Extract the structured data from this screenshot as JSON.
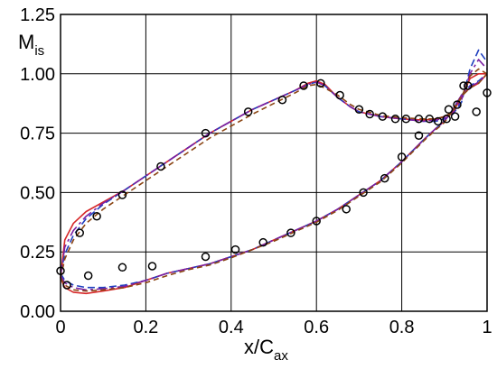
{
  "chart_data": {
    "type": "line",
    "title": "",
    "xlabel": {
      "main": "x/C",
      "sub": "ax"
    },
    "ylabel": {
      "main": "M",
      "sub": "is"
    },
    "xlim": [
      0,
      1
    ],
    "ylim": [
      0,
      1.25
    ],
    "grid": true,
    "legend": "none",
    "x_ticks": [
      {
        "value": 0,
        "label": "0"
      },
      {
        "value": 0.2,
        "label": "0.2"
      },
      {
        "value": 0.4,
        "label": "0.4"
      },
      {
        "value": 0.6,
        "label": "0.6"
      },
      {
        "value": 0.8,
        "label": "0.8"
      },
      {
        "value": 1.0,
        "label": "1"
      }
    ],
    "y_ticks": [
      {
        "value": 0,
        "label": "0.00"
      },
      {
        "value": 0.25,
        "label": "0.25"
      },
      {
        "value": 0.5,
        "label": "0.50"
      },
      {
        "value": 0.75,
        "label": "0.75"
      },
      {
        "value": 1.0,
        "label": "1.00"
      },
      {
        "value": 1.25,
        "label": "1.25"
      }
    ],
    "series": [
      {
        "color": "#d62728",
        "dash": "solid",
        "suction": [
          [
            0,
            0.14
          ],
          [
            0.01,
            0.3
          ],
          [
            0.03,
            0.37
          ],
          [
            0.06,
            0.42
          ],
          [
            0.1,
            0.46
          ],
          [
            0.15,
            0.51
          ],
          [
            0.2,
            0.57
          ],
          [
            0.25,
            0.63
          ],
          [
            0.3,
            0.69
          ],
          [
            0.35,
            0.75
          ],
          [
            0.4,
            0.8
          ],
          [
            0.45,
            0.85
          ],
          [
            0.5,
            0.89
          ],
          [
            0.55,
            0.93
          ],
          [
            0.58,
            0.96
          ],
          [
            0.6,
            0.97
          ],
          [
            0.62,
            0.955
          ],
          [
            0.65,
            0.9
          ],
          [
            0.68,
            0.86
          ],
          [
            0.7,
            0.84
          ],
          [
            0.75,
            0.82
          ],
          [
            0.8,
            0.81
          ],
          [
            0.85,
            0.805
          ],
          [
            0.88,
            0.81
          ],
          [
            0.9,
            0.82
          ],
          [
            0.92,
            0.84
          ],
          [
            0.94,
            0.9
          ],
          [
            0.96,
            0.98
          ],
          [
            0.98,
            1.0
          ],
          [
            1.0,
            1.0
          ]
        ],
        "pressure": [
          [
            0,
            0.14
          ],
          [
            0.01,
            0.1
          ],
          [
            0.03,
            0.08
          ],
          [
            0.06,
            0.075
          ],
          [
            0.1,
            0.085
          ],
          [
            0.15,
            0.1
          ],
          [
            0.2,
            0.13
          ],
          [
            0.25,
            0.16
          ],
          [
            0.3,
            0.18
          ],
          [
            0.35,
            0.2
          ],
          [
            0.4,
            0.23
          ],
          [
            0.45,
            0.26
          ],
          [
            0.5,
            0.3
          ],
          [
            0.55,
            0.34
          ],
          [
            0.6,
            0.38
          ],
          [
            0.65,
            0.43
          ],
          [
            0.7,
            0.49
          ],
          [
            0.75,
            0.55
          ],
          [
            0.8,
            0.63
          ],
          [
            0.85,
            0.72
          ],
          [
            0.88,
            0.77
          ],
          [
            0.9,
            0.8
          ],
          [
            0.92,
            0.85
          ],
          [
            0.94,
            0.91
          ],
          [
            0.96,
            0.94
          ],
          [
            0.98,
            0.96
          ],
          [
            1.0,
            1.0
          ]
        ]
      },
      {
        "color": "#1f3fbf",
        "dash": "8,4",
        "suction": [
          [
            0,
            0.16
          ],
          [
            0.01,
            0.24
          ],
          [
            0.03,
            0.32
          ],
          [
            0.06,
            0.39
          ],
          [
            0.1,
            0.45
          ],
          [
            0.15,
            0.51
          ],
          [
            0.2,
            0.57
          ],
          [
            0.25,
            0.63
          ],
          [
            0.3,
            0.69
          ],
          [
            0.35,
            0.75
          ],
          [
            0.4,
            0.8
          ],
          [
            0.45,
            0.85
          ],
          [
            0.5,
            0.89
          ],
          [
            0.55,
            0.93
          ],
          [
            0.58,
            0.955
          ],
          [
            0.6,
            0.965
          ],
          [
            0.62,
            0.95
          ],
          [
            0.65,
            0.9
          ],
          [
            0.68,
            0.86
          ],
          [
            0.7,
            0.84
          ],
          [
            0.75,
            0.82
          ],
          [
            0.8,
            0.81
          ],
          [
            0.85,
            0.8
          ],
          [
            0.88,
            0.8
          ],
          [
            0.9,
            0.81
          ],
          [
            0.92,
            0.83
          ],
          [
            0.94,
            0.88
          ],
          [
            0.96,
            1.02
          ],
          [
            0.98,
            1.1
          ],
          [
            1.0,
            1.05
          ]
        ],
        "pressure": [
          [
            0,
            0.16
          ],
          [
            0.01,
            0.13
          ],
          [
            0.03,
            0.11
          ],
          [
            0.06,
            0.1
          ],
          [
            0.1,
            0.1
          ],
          [
            0.15,
            0.11
          ],
          [
            0.2,
            0.13
          ],
          [
            0.25,
            0.16
          ],
          [
            0.3,
            0.18
          ],
          [
            0.35,
            0.2
          ],
          [
            0.4,
            0.23
          ],
          [
            0.45,
            0.26
          ],
          [
            0.5,
            0.3
          ],
          [
            0.55,
            0.34
          ],
          [
            0.6,
            0.38
          ],
          [
            0.65,
            0.43
          ],
          [
            0.7,
            0.49
          ],
          [
            0.75,
            0.55
          ],
          [
            0.8,
            0.63
          ],
          [
            0.85,
            0.72
          ],
          [
            0.88,
            0.77
          ],
          [
            0.9,
            0.8
          ],
          [
            0.92,
            0.85
          ],
          [
            0.94,
            0.91
          ],
          [
            0.96,
            0.95
          ],
          [
            0.98,
            0.97
          ],
          [
            1.0,
            1.0
          ]
        ]
      },
      {
        "color": "#7b1fa2",
        "dash": "12,4,3,4",
        "suction": [
          [
            0,
            0.15
          ],
          [
            0.01,
            0.27
          ],
          [
            0.03,
            0.34
          ],
          [
            0.06,
            0.4
          ],
          [
            0.1,
            0.455
          ],
          [
            0.15,
            0.51
          ],
          [
            0.2,
            0.57
          ],
          [
            0.25,
            0.63
          ],
          [
            0.3,
            0.69
          ],
          [
            0.35,
            0.75
          ],
          [
            0.4,
            0.8
          ],
          [
            0.45,
            0.85
          ],
          [
            0.5,
            0.89
          ],
          [
            0.55,
            0.93
          ],
          [
            0.58,
            0.955
          ],
          [
            0.6,
            0.965
          ],
          [
            0.62,
            0.95
          ],
          [
            0.65,
            0.9
          ],
          [
            0.68,
            0.86
          ],
          [
            0.7,
            0.84
          ],
          [
            0.75,
            0.82
          ],
          [
            0.8,
            0.81
          ],
          [
            0.85,
            0.8
          ],
          [
            0.88,
            0.805
          ],
          [
            0.9,
            0.815
          ],
          [
            0.92,
            0.835
          ],
          [
            0.94,
            0.89
          ],
          [
            0.96,
            1.0
          ],
          [
            0.98,
            1.06
          ],
          [
            1.0,
            1.02
          ]
        ],
        "pressure": [
          [
            0,
            0.15
          ],
          [
            0.01,
            0.12
          ],
          [
            0.03,
            0.1
          ],
          [
            0.06,
            0.09
          ],
          [
            0.1,
            0.095
          ],
          [
            0.15,
            0.105
          ],
          [
            0.2,
            0.13
          ],
          [
            0.25,
            0.16
          ],
          [
            0.3,
            0.18
          ],
          [
            0.35,
            0.2
          ],
          [
            0.4,
            0.23
          ],
          [
            0.45,
            0.26
          ],
          [
            0.5,
            0.3
          ],
          [
            0.55,
            0.34
          ],
          [
            0.6,
            0.38
          ],
          [
            0.65,
            0.43
          ],
          [
            0.7,
            0.49
          ],
          [
            0.75,
            0.55
          ],
          [
            0.8,
            0.63
          ],
          [
            0.85,
            0.72
          ],
          [
            0.88,
            0.77
          ],
          [
            0.9,
            0.8
          ],
          [
            0.92,
            0.85
          ],
          [
            0.94,
            0.91
          ],
          [
            0.96,
            0.945
          ],
          [
            0.98,
            0.965
          ],
          [
            1.0,
            1.0
          ]
        ]
      },
      {
        "color": "#8b4513",
        "dash": "6,4",
        "suction": [
          [
            0,
            0.14
          ],
          [
            0.01,
            0.22
          ],
          [
            0.03,
            0.3
          ],
          [
            0.06,
            0.37
          ],
          [
            0.1,
            0.43
          ],
          [
            0.15,
            0.49
          ],
          [
            0.2,
            0.55
          ],
          [
            0.25,
            0.61
          ],
          [
            0.3,
            0.67
          ],
          [
            0.35,
            0.73
          ],
          [
            0.4,
            0.78
          ],
          [
            0.45,
            0.83
          ],
          [
            0.5,
            0.875
          ],
          [
            0.55,
            0.92
          ],
          [
            0.58,
            0.95
          ],
          [
            0.6,
            0.955
          ],
          [
            0.62,
            0.94
          ],
          [
            0.65,
            0.91
          ],
          [
            0.68,
            0.87
          ],
          [
            0.7,
            0.85
          ],
          [
            0.75,
            0.825
          ],
          [
            0.8,
            0.815
          ],
          [
            0.85,
            0.81
          ],
          [
            0.88,
            0.81
          ],
          [
            0.9,
            0.82
          ],
          [
            0.92,
            0.84
          ],
          [
            0.94,
            0.9
          ],
          [
            0.96,
            0.99
          ],
          [
            0.98,
            1.02
          ],
          [
            1.0,
            1.0
          ]
        ],
        "pressure": [
          [
            0,
            0.14
          ],
          [
            0.01,
            0.11
          ],
          [
            0.03,
            0.09
          ],
          [
            0.06,
            0.085
          ],
          [
            0.1,
            0.09
          ],
          [
            0.15,
            0.1
          ],
          [
            0.2,
            0.12
          ],
          [
            0.25,
            0.15
          ],
          [
            0.3,
            0.175
          ],
          [
            0.35,
            0.195
          ],
          [
            0.4,
            0.225
          ],
          [
            0.45,
            0.26
          ],
          [
            0.5,
            0.295
          ],
          [
            0.55,
            0.335
          ],
          [
            0.6,
            0.375
          ],
          [
            0.65,
            0.425
          ],
          [
            0.7,
            0.485
          ],
          [
            0.75,
            0.545
          ],
          [
            0.8,
            0.625
          ],
          [
            0.85,
            0.715
          ],
          [
            0.88,
            0.765
          ],
          [
            0.9,
            0.795
          ],
          [
            0.92,
            0.845
          ],
          [
            0.94,
            0.905
          ],
          [
            0.96,
            0.94
          ],
          [
            0.98,
            0.96
          ],
          [
            1.0,
            1.0
          ]
        ]
      }
    ],
    "experiment": {
      "marker": "open-circle",
      "points": [
        [
          0.0,
          0.17
        ],
        [
          0.015,
          0.11
        ],
        [
          0.045,
          0.33
        ],
        [
          0.065,
          0.15
        ],
        [
          0.085,
          0.4
        ],
        [
          0.145,
          0.185
        ],
        [
          0.145,
          0.49
        ],
        [
          0.215,
          0.19
        ],
        [
          0.235,
          0.61
        ],
        [
          0.34,
          0.23
        ],
        [
          0.34,
          0.75
        ],
        [
          0.41,
          0.26
        ],
        [
          0.44,
          0.84
        ],
        [
          0.475,
          0.29
        ],
        [
          0.52,
          0.89
        ],
        [
          0.54,
          0.33
        ],
        [
          0.57,
          0.95
        ],
        [
          0.6,
          0.38
        ],
        [
          0.61,
          0.96
        ],
        [
          0.655,
          0.91
        ],
        [
          0.67,
          0.43
        ],
        [
          0.7,
          0.85
        ],
        [
          0.71,
          0.5
        ],
        [
          0.725,
          0.83
        ],
        [
          0.755,
          0.82
        ],
        [
          0.76,
          0.56
        ],
        [
          0.785,
          0.81
        ],
        [
          0.8,
          0.65
        ],
        [
          0.81,
          0.81
        ],
        [
          0.84,
          0.74
        ],
        [
          0.84,
          0.81
        ],
        [
          0.865,
          0.81
        ],
        [
          0.885,
          0.8
        ],
        [
          0.905,
          0.81
        ],
        [
          0.91,
          0.85
        ],
        [
          0.925,
          0.82
        ],
        [
          0.93,
          0.87
        ],
        [
          0.945,
          0.95
        ],
        [
          0.955,
          0.95
        ],
        [
          0.975,
          0.84
        ],
        [
          1.0,
          0.92
        ]
      ]
    }
  }
}
